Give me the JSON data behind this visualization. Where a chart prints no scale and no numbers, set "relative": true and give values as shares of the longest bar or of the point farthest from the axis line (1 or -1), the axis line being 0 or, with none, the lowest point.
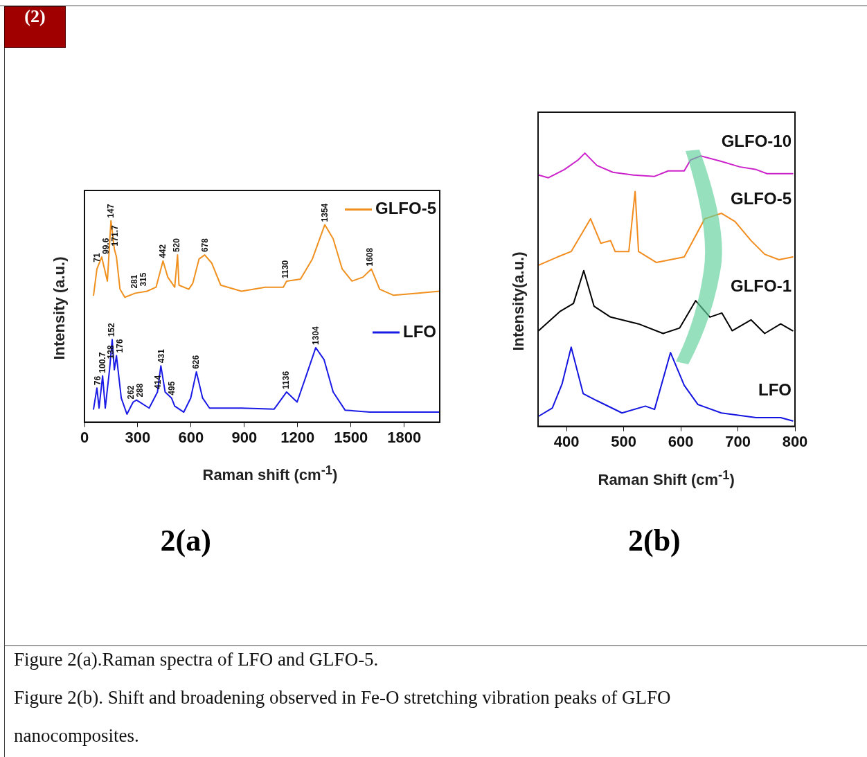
{
  "chart_data": [
    {
      "type": "line",
      "title": "2(a)",
      "xlabel": "Raman shift (cm$^{-1}$)",
      "ylabel": "Intensity (a.u.)",
      "relative": true,
      "xlim": [
        0,
        2000
      ],
      "xticks": [
        0,
        300,
        600,
        900,
        1200,
        1500,
        1800
      ],
      "marker": "none",
      "legend": "right",
      "series": [
        {
          "name": "GLFO-5",
          "color": "#f0901e",
          "x": [
            51,
            70,
            97,
            110,
            129,
            149,
            168,
            180,
            200,
            227,
            285,
            352,
            403,
            442,
            469,
            508,
            524,
            532,
            587,
            610,
            645,
            677,
            716,
            767,
            884,
            1017,
            1087,
            1119,
            1138,
            1216,
            1283,
            1353,
            1400,
            1451,
            1506,
            1568,
            1615,
            1662,
            1740,
            1869,
            1998
          ],
          "values": [
            0.63,
            0.76,
            0.82,
            0.77,
            0.7,
            1.0,
            0.86,
            0.82,
            0.66,
            0.62,
            0.64,
            0.65,
            0.67,
            0.8,
            0.72,
            0.67,
            0.83,
            0.68,
            0.66,
            0.69,
            0.81,
            0.83,
            0.79,
            0.68,
            0.65,
            0.67,
            0.67,
            0.67,
            0.7,
            0.71,
            0.81,
            0.98,
            0.91,
            0.76,
            0.7,
            0.72,
            0.76,
            0.66,
            0.63,
            0.64,
            0.65
          ]
        },
        {
          "name": "LFO",
          "color": "#1a1ae6",
          "x": [
            51,
            70,
            82,
            102,
            117,
            141,
            156,
            168,
            180,
            207,
            239,
            274,
            293,
            364,
            411,
            430,
            454,
            490,
            508,
            559,
            598,
            630,
            665,
            704,
            884,
            1068,
            1138,
            1197,
            1244,
            1302,
            1349,
            1400,
            1467,
            1607,
            1998
          ],
          "values": [
            0.065,
            0.17,
            0.07,
            0.23,
            0.07,
            0.26,
            0.41,
            0.26,
            0.33,
            0.12,
            0.04,
            0.1,
            0.11,
            0.07,
            0.15,
            0.28,
            0.15,
            0.12,
            0.08,
            0.05,
            0.12,
            0.25,
            0.12,
            0.07,
            0.07,
            0.065,
            0.15,
            0.1,
            0.22,
            0.37,
            0.31,
            0.15,
            0.06,
            0.05,
            0.05
          ]
        }
      ],
      "annotations": [
        "(2)",
        "Figure 2(a).Raman spectra of LFO and GLFO-5.",
        {
          "text": "71",
          "x": 71,
          "y": 0.78
        },
        {
          "text": "99.6",
          "x": 99.6,
          "y": 0.82
        },
        {
          "text": "147",
          "x": 147,
          "y": 1.0
        },
        {
          "text": "171.7",
          "x": 171.7,
          "y": 0.86
        },
        {
          "text": "281",
          "x": 281,
          "y": 0.65
        },
        {
          "text": "315",
          "x": 315,
          "y": 0.66
        },
        {
          "text": "442",
          "x": 442,
          "y": 0.8
        },
        {
          "text": "520",
          "x": 520,
          "y": 0.83
        },
        {
          "text": "678",
          "x": 678,
          "y": 0.83
        },
        {
          "text": "1130",
          "x": 1130,
          "y": 0.7
        },
        {
          "text": "1354",
          "x": 1354,
          "y": 0.98
        },
        {
          "text": "1608",
          "x": 1608,
          "y": 0.76
        },
        {
          "text": "76",
          "x": 76,
          "y": 0.17
        },
        {
          "text": "100.7",
          "x": 100.7,
          "y": 0.23
        },
        {
          "text": "138",
          "x": 138,
          "y": 0.3
        },
        {
          "text": "152",
          "x": 152,
          "y": 0.41
        },
        {
          "text": "176",
          "x": 176,
          "y": 0.33
        },
        {
          "text": "262",
          "x": 262,
          "y": 0.1
        },
        {
          "text": "288",
          "x": 288,
          "y": 0.11
        },
        {
          "text": "414",
          "x": 414,
          "y": 0.15
        },
        {
          "text": "431",
          "x": 431,
          "y": 0.28
        },
        {
          "text": "495",
          "x": 490,
          "y": 0.12
        },
        {
          "text": "626",
          "x": 626,
          "y": 0.25
        },
        {
          "text": "1136",
          "x": 1136,
          "y": 0.15
        },
        {
          "text": "1304",
          "x": 1304,
          "y": 0.37
        }
      ]
    },
    {
      "type": "line",
      "title": "2(b)",
      "xlabel": "Raman Shift (cm$^{-1}$)",
      "ylabel": "Intensity(a.u.)",
      "relative": true,
      "xlim": [
        350,
        800
      ],
      "xticks": [
        400,
        500,
        600,
        700,
        800
      ],
      "marker": "none",
      "series": [
        {
          "name": "GLFO-10",
          "color": "#cc22cc",
          "x": [
            351,
            368,
            396,
            420,
            432,
            453,
            481,
            517,
            554,
            578,
            606,
            617,
            635,
            671,
            703,
            732,
            751,
            796
          ],
          "values": [
            0.92,
            0.91,
            0.94,
            0.975,
            1.0,
            0.955,
            0.93,
            0.92,
            0.915,
            0.935,
            0.935,
            0.975,
            0.99,
            0.97,
            0.95,
            0.94,
            0.925,
            0.925
          ]
        },
        {
          "name": "GLFO-5",
          "color": "#f28c1e",
          "x": [
            351,
            384,
            408,
            442,
            460,
            477,
            485,
            509,
            520,
            526,
            557,
            606,
            642,
            671,
            695,
            723,
            747,
            772,
            796
          ],
          "values": [
            0.59,
            0.62,
            0.64,
            0.76,
            0.67,
            0.68,
            0.64,
            0.64,
            0.86,
            0.64,
            0.6,
            0.62,
            0.76,
            0.78,
            0.75,
            0.68,
            0.63,
            0.61,
            0.62
          ]
        },
        {
          "name": "GLFO-1",
          "color": "#000000",
          "x": [
            351,
            388,
            412,
            430,
            448,
            477,
            526,
            569,
            598,
            626,
            651,
            672,
            690,
            723,
            747,
            775,
            796
          ],
          "values": [
            0.35,
            0.42,
            0.45,
            0.57,
            0.44,
            0.4,
            0.375,
            0.34,
            0.36,
            0.46,
            0.4,
            0.415,
            0.35,
            0.39,
            0.34,
            0.375,
            0.35
          ]
        },
        {
          "name": "LFO",
          "color": "#1414e0",
          "x": [
            351,
            375,
            392,
            408,
            429,
            453,
            497,
            538,
            554,
            582,
            606,
            630,
            671,
            732,
            775,
            796
          ],
          "values": [
            0.037,
            0.067,
            0.155,
            0.29,
            0.12,
            0.094,
            0.049,
            0.074,
            0.062,
            0.27,
            0.15,
            0.08,
            0.049,
            0.032,
            0.032,
            0.02
          ]
        }
      ],
      "annotations": [
        "Figure 2(b). Shift and broadening observed in Fe-O stretching vibration peaks of GLFO nanocomposites."
      ]
    }
  ]
}
